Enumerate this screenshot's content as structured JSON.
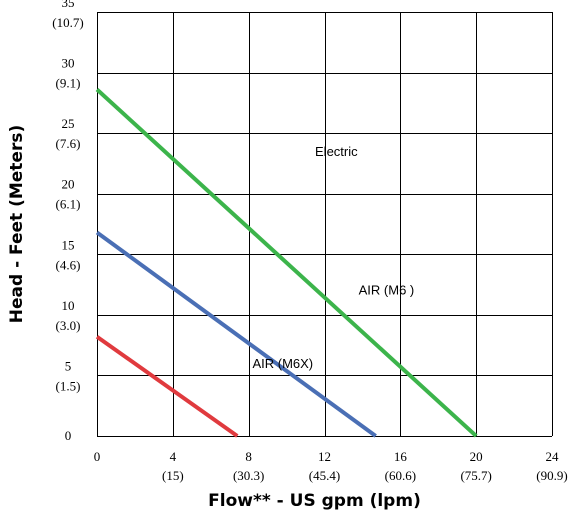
{
  "chart_data": {
    "type": "line",
    "xlabel": "Flow** - US gpm (lpm)",
    "ylabel": "Head - Feet (Meters)",
    "xlim": [
      0,
      24
    ],
    "ylim": [
      0,
      35
    ],
    "grid": true,
    "x_ticks": [
      {
        "value": 0,
        "primary": "0",
        "secondary": ""
      },
      {
        "value": 4,
        "primary": "4",
        "secondary": "(15)"
      },
      {
        "value": 8,
        "primary": "8",
        "secondary": "(30.3)"
      },
      {
        "value": 12,
        "primary": "12",
        "secondary": "(45.4)"
      },
      {
        "value": 16,
        "primary": "16",
        "secondary": "(60.6)"
      },
      {
        "value": 20,
        "primary": "20",
        "secondary": "(75.7)"
      },
      {
        "value": 24,
        "primary": "24",
        "secondary": "(90.9)"
      }
    ],
    "y_ticks": [
      {
        "value": 0,
        "primary": "0",
        "secondary": ""
      },
      {
        "value": 5,
        "primary": "5",
        "secondary": "(1.5)"
      },
      {
        "value": 10,
        "primary": "10",
        "secondary": "(3.0)"
      },
      {
        "value": 15,
        "primary": "15",
        "secondary": "(4.6)"
      },
      {
        "value": 20,
        "primary": "20",
        "secondary": "(6.1)"
      },
      {
        "value": 25,
        "primary": "25",
        "secondary": "(7.6)"
      },
      {
        "value": 30,
        "primary": "30",
        "secondary": "(9.1)"
      },
      {
        "value": 35,
        "primary": "35",
        "secondary": "(10.7)"
      }
    ],
    "series": [
      {
        "name": "Electric",
        "color": "#3cb44b",
        "x": [
          0,
          20
        ],
        "y": [
          28.6,
          0
        ],
        "label_at": [
          11.5,
          23.1
        ]
      },
      {
        "name": "AIR (M6 )",
        "color": "#4a6fb5",
        "x": [
          0,
          14.7
        ],
        "y": [
          16.8,
          0
        ],
        "label_at": [
          13.8,
          11.7
        ]
      },
      {
        "name": "AIR (M6X)",
        "color": "#e03a3e",
        "x": [
          0,
          7.4
        ],
        "y": [
          8.2,
          0
        ],
        "label_at": [
          8.2,
          5.6
        ]
      }
    ]
  }
}
